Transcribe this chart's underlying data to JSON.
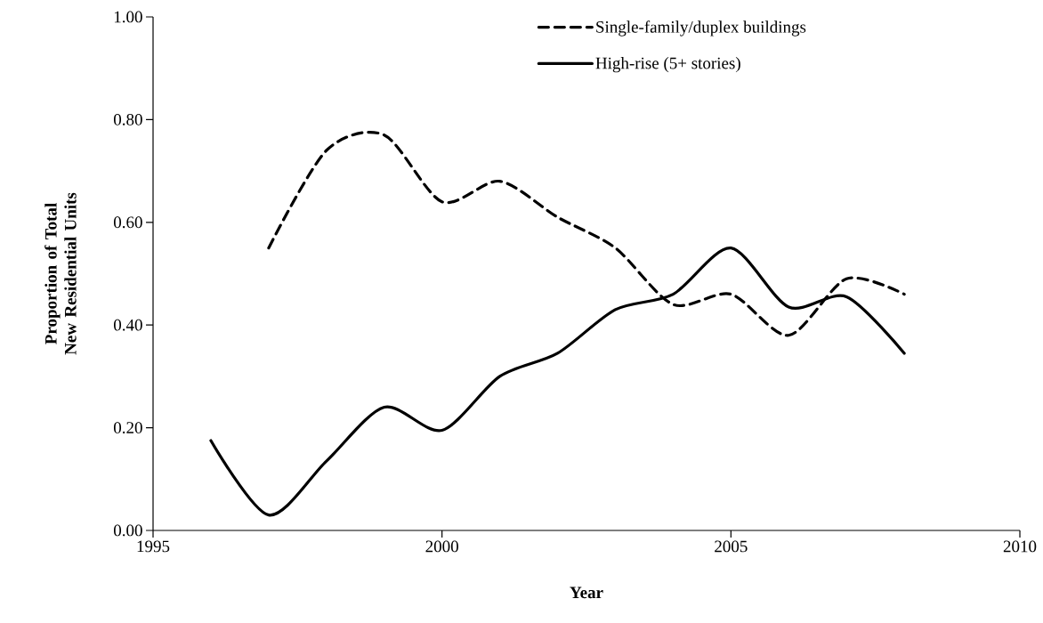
{
  "chart_data": {
    "type": "line",
    "xlabel": "Year",
    "ylabel": "Proportion of Total New Residential Units",
    "xlim": [
      1995,
      2010
    ],
    "xticks": [
      1995,
      2000,
      2005,
      2010
    ],
    "ylim": [
      0,
      1
    ],
    "yticks": [
      {
        "value": 0,
        "label": "0.00"
      },
      {
        "value": 0.2,
        "label": "0.20"
      },
      {
        "value": 0.4,
        "label": "0.40"
      },
      {
        "value": 0.6,
        "label": "0.60"
      },
      {
        "value": 0.8,
        "label": "0.80"
      },
      {
        "value": 1,
        "label": "1.00"
      }
    ],
    "grid": false,
    "legend": "top right",
    "series": [
      {
        "name": "Single-family/duplex buildings",
        "color": "#000000",
        "line_style": "dashed",
        "x": [
          1997,
          1998,
          1999,
          2000,
          2001,
          2002,
          2003,
          2004,
          2005,
          2006,
          2007,
          2008
        ],
        "values": [
          0.55,
          0.74,
          0.77,
          0.64,
          0.68,
          0.61,
          0.55,
          0.44,
          0.46,
          0.38,
          0.49,
          0.46
        ]
      },
      {
        "name": "High-rise (5+ stories)",
        "color": "#000000",
        "line_style": "solid",
        "x": [
          1996,
          1997,
          1998,
          1999,
          2000,
          2001,
          2002,
          2003,
          2004,
          2005,
          2006,
          2007,
          2008
        ],
        "values": [
          0.175,
          0.03,
          0.135,
          0.24,
          0.195,
          0.3,
          0.345,
          0.43,
          0.46,
          0.55,
          0.435,
          0.455,
          0.345
        ]
      }
    ]
  }
}
